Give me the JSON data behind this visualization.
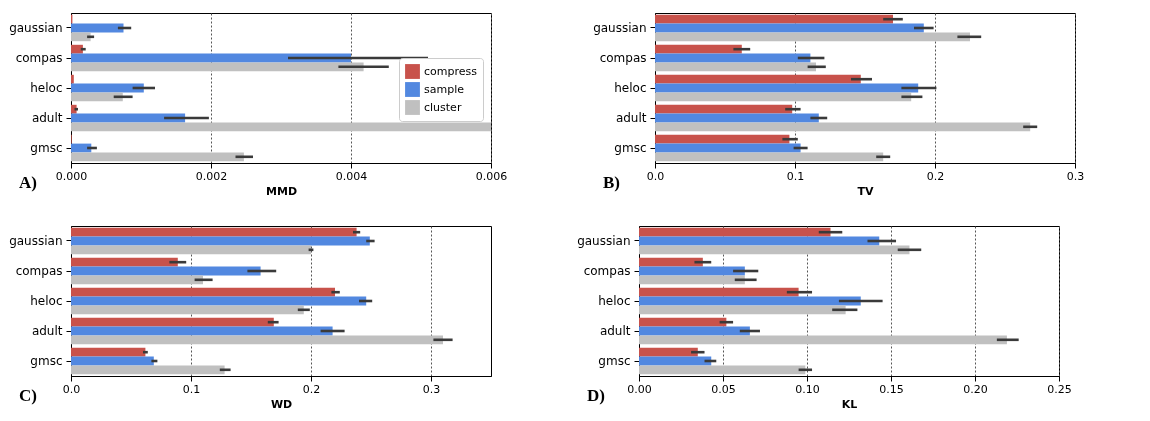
{
  "chart_data": [
    {
      "type": "bar",
      "orientation": "horizontal",
      "categories": [
        "gaussian",
        "compas",
        "heloc",
        "adult",
        "gmsc"
      ],
      "xlabel": "MMD",
      "xlim": [
        0,
        0.006
      ],
      "xticks": [
        {
          "value": 0,
          "label": "0.000"
        },
        0.002,
        0.004,
        0.006
      ],
      "grid": "x",
      "legend": "right",
      "annotations": [
        "A)"
      ],
      "series": [
        {
          "name": "compress",
          "color": "#c8524b",
          "values": [
            2e-05,
            0.00017,
            4e-05,
            8e-05,
            1e-05
          ],
          "errors": [
            null,
            [
              0.00014,
              0.00021
            ],
            null,
            [
              5e-05,
              0.0001
            ],
            null
          ]
        },
        {
          "name": "sample",
          "color": "#5288e0",
          "values": [
            0.00075,
            0.004,
            0.00104,
            0.00163,
            0.00029
          ],
          "errors": [
            [
              0.00067,
              0.00086
            ],
            [
              0.0031,
              0.0051
            ],
            [
              0.00088,
              0.0012
            ],
            [
              0.00133,
              0.00197
            ],
            [
              0.00023,
              0.00037
            ]
          ]
        },
        {
          "name": "cluster",
          "color": "#c0c0c0",
          "values": [
            0.00028,
            0.00418,
            0.00074,
            0.006,
            0.00247
          ],
          "errors": [
            [
              0.00023,
              0.00033
            ],
            [
              0.00382,
              0.00454
            ],
            [
              0.00061,
              0.00088
            ],
            null,
            [
              0.00235,
              0.0026
            ]
          ]
        }
      ]
    },
    {
      "type": "bar",
      "orientation": "horizontal",
      "categories": [
        "gaussian",
        "compas",
        "heloc",
        "adult",
        "gmsc"
      ],
      "xlabel": "TV",
      "xlim": [
        0,
        0.3
      ],
      "xticks": [
        {
          "value": 0,
          "label": "0.0"
        },
        0.1,
        0.2,
        0.3
      ],
      "grid": "x",
      "annotations": [
        "B)"
      ],
      "series": [
        {
          "name": "compress",
          "color": "#c8524b",
          "values": [
            0.17,
            0.062,
            0.147,
            0.098,
            0.096
          ],
          "errors": [
            [
              0.163,
              0.177
            ],
            [
              0.056,
              0.068
            ],
            [
              0.14,
              0.155
            ],
            [
              0.093,
              0.104
            ],
            [
              0.091,
              0.102
            ]
          ]
        },
        {
          "name": "sample",
          "color": "#5288e0",
          "values": [
            0.192,
            0.111,
            0.188,
            0.117,
            0.104
          ],
          "errors": [
            [
              0.185,
              0.199
            ],
            [
              0.102,
              0.121
            ],
            [
              0.176,
              0.201
            ],
            [
              0.111,
              0.123
            ],
            [
              0.099,
              0.109
            ]
          ]
        },
        {
          "name": "cluster",
          "color": "#c0c0c0",
          "values": [
            0.225,
            0.115,
            0.183,
            0.268,
            0.163
          ],
          "errors": [
            [
              0.216,
              0.233
            ],
            [
              0.109,
              0.122
            ],
            [
              0.176,
              0.191
            ],
            [
              0.263,
              0.273
            ],
            [
              0.158,
              0.168
            ]
          ]
        }
      ]
    },
    {
      "type": "bar",
      "orientation": "horizontal",
      "categories": [
        "gaussian",
        "compas",
        "heloc",
        "adult",
        "gmsc"
      ],
      "xlabel": "WD",
      "xlim": [
        0,
        0.35
      ],
      "xticks": [
        {
          "value": 0,
          "label": "0.0"
        },
        0.1,
        0.2,
        0.3
      ],
      "grid": "x",
      "annotations": [
        "C)"
      ],
      "series": [
        {
          "name": "compress",
          "color": "#c8524b",
          "values": [
            0.238,
            0.089,
            0.22,
            0.169,
            0.062
          ],
          "errors": [
            [
              0.235,
              0.241
            ],
            [
              0.082,
              0.096
            ],
            [
              0.217,
              0.224
            ],
            [
              0.164,
              0.173
            ],
            [
              0.06,
              0.064
            ]
          ]
        },
        {
          "name": "sample",
          "color": "#5288e0",
          "values": [
            0.249,
            0.158,
            0.246,
            0.218,
            0.069
          ],
          "errors": [
            [
              0.246,
              0.253
            ],
            [
              0.147,
              0.171
            ],
            [
              0.24,
              0.251
            ],
            [
              0.208,
              0.228
            ],
            [
              0.067,
              0.072
            ]
          ]
        },
        {
          "name": "cluster",
          "color": "#c0c0c0",
          "values": [
            0.2,
            0.11,
            0.194,
            0.31,
            0.128
          ],
          "errors": [
            [
              0.198,
              0.202
            ],
            [
              0.103,
              0.118
            ],
            [
              0.189,
              0.199
            ],
            [
              0.302,
              0.318
            ],
            [
              0.124,
              0.133
            ]
          ]
        }
      ]
    },
    {
      "type": "bar",
      "orientation": "horizontal",
      "categories": [
        "gaussian",
        "compas",
        "heloc",
        "adult",
        "gmsc"
      ],
      "xlabel": "KL",
      "xlim": [
        0,
        0.25
      ],
      "xticks": [
        {
          "value": 0,
          "label": "0.00"
        },
        0.05,
        {
          "value": 0.1,
          "label": "0.10"
        },
        0.15,
        {
          "value": 0.2,
          "label": "0.20"
        },
        0.25
      ],
      "grid": "x",
      "legend": "top right",
      "annotations": [
        "D)"
      ],
      "series": [
        {
          "name": "compress",
          "color": "#c8524b",
          "values": [
            0.114,
            0.038,
            0.095,
            0.052,
            0.035
          ],
          "errors": [
            [
              0.107,
              0.121
            ],
            [
              0.033,
              0.043
            ],
            [
              0.088,
              0.103
            ],
            [
              0.048,
              0.056
            ],
            [
              0.031,
              0.039
            ]
          ]
        },
        {
          "name": "sample",
          "color": "#5288e0",
          "values": [
            0.143,
            0.063,
            0.132,
            0.066,
            0.043
          ],
          "errors": [
            [
              0.136,
              0.153
            ],
            [
              0.056,
              0.071
            ],
            [
              0.119,
              0.145
            ],
            [
              0.06,
              0.072
            ],
            [
              0.039,
              0.046
            ]
          ]
        },
        {
          "name": "cluster",
          "color": "#c0c0c0",
          "values": [
            0.161,
            0.063,
            0.123,
            0.219,
            0.099
          ],
          "errors": [
            [
              0.154,
              0.168
            ],
            [
              0.057,
              0.07
            ],
            [
              0.115,
              0.13
            ],
            [
              0.213,
              0.226
            ],
            [
              0.095,
              0.103
            ]
          ]
        }
      ]
    }
  ]
}
